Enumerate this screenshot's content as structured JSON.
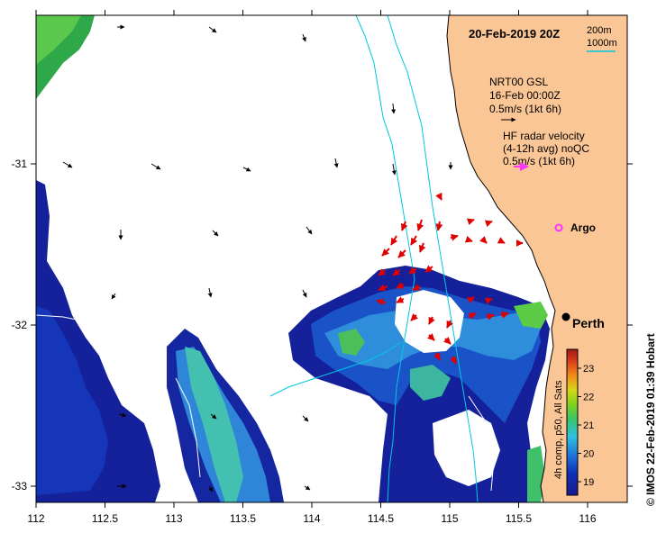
{
  "title": "20-Feb-2019 20Z",
  "scale": {
    "line1": "200m",
    "line2": "1000m"
  },
  "gsl": {
    "label": "NRT00 GSL",
    "date": "16-Feb 00:00Z",
    "speed": "0.5m/s (1kt 6h)"
  },
  "hf": {
    "label": "HF radar velocity",
    "avg": "(4-12h avg) noQC",
    "speed": "0.5m/s (1kt 6h)"
  },
  "argo": {
    "label": "Argo"
  },
  "city": {
    "label": "Perth"
  },
  "credit": "© IMOS 22-Feb-2019 01:39 Hobart",
  "colorbar": {
    "label": "4h comp, p50, All Sats",
    "ticks": [
      "19",
      "20",
      "21",
      "22",
      "23"
    ]
  },
  "x_ticks": [
    "112",
    "112.5",
    "113",
    "113.5",
    "114",
    "114.5",
    "115",
    "115.5",
    "116"
  ],
  "y_ticks": [
    "-31",
    "-32",
    "-33"
  ],
  "colors": {
    "land": "#fbc695",
    "isobath": "#00c8e0",
    "hf_arrow": "#e00000",
    "argo": "#ff33ff"
  }
}
